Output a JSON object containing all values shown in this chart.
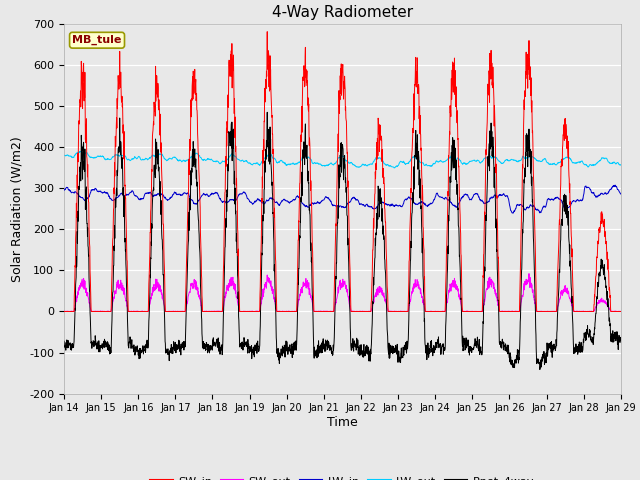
{
  "title": "4-Way Radiometer",
  "xlabel": "Time",
  "ylabel": "Solar Radiation (W/m2)",
  "station_label": "MB_tule",
  "ylim": [
    -200,
    700
  ],
  "yticks": [
    -200,
    -100,
    0,
    100,
    200,
    300,
    400,
    500,
    600,
    700
  ],
  "num_days": 15,
  "day_start": 14,
  "colors": {
    "SW_in": "#ff0000",
    "SW_out": "#ff00ff",
    "LW_in": "#0000cc",
    "LW_out": "#00ccff",
    "Rnet_4way": "#000000"
  },
  "sw_peaks": [
    570,
    570,
    555,
    565,
    615,
    605,
    595,
    580,
    445,
    580,
    585,
    590,
    625,
    445,
    225
  ],
  "lw_in_base": [
    290,
    285,
    285,
    282,
    278,
    272,
    268,
    265,
    262,
    268,
    275,
    280,
    255,
    270,
    295
  ],
  "lw_out_base": [
    375,
    370,
    370,
    368,
    365,
    362,
    360,
    358,
    356,
    358,
    362,
    365,
    365,
    360,
    358
  ],
  "background_color": "#e8e8e8"
}
